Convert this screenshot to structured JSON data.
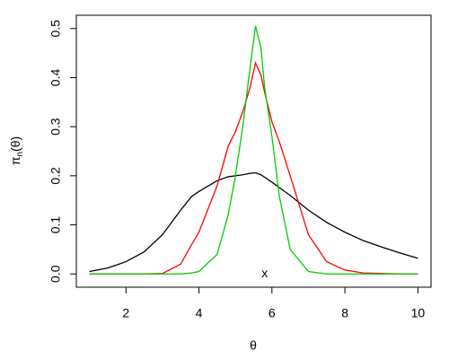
{
  "chart_data": {
    "type": "line",
    "x_label": "θ",
    "y_label": {
      "symbol": "π",
      "subscript": "n",
      "argument": "(θ)"
    },
    "x": [
      1,
      1.5,
      2,
      2.5,
      3,
      3.5,
      3.8,
      4,
      4.5,
      4.8,
      5,
      5.2,
      5.4,
      5.55,
      5.7,
      5.8,
      6,
      6.2,
      6.5,
      7,
      7.5,
      8,
      8.5,
      9,
      9.5,
      10
    ],
    "series": [
      {
        "color": "#000000",
        "values": [
          0.005,
          0.012,
          0.025,
          0.045,
          0.08,
          0.13,
          0.158,
          0.168,
          0.19,
          0.198,
          0.2,
          0.202,
          0.205,
          0.206,
          0.202,
          0.197,
          0.187,
          0.176,
          0.16,
          0.13,
          0.105,
          0.085,
          0.068,
          0.055,
          0.043,
          0.032
        ]
      },
      {
        "color": "#ff0000",
        "values": [
          0,
          0,
          0,
          0,
          0.001,
          0.02,
          0.06,
          0.085,
          0.18,
          0.26,
          0.29,
          0.33,
          0.38,
          0.43,
          0.405,
          0.37,
          0.31,
          0.27,
          0.2,
          0.08,
          0.025,
          0.008,
          0.002,
          0.001,
          0,
          0
        ]
      },
      {
        "color": "#00cd00",
        "values": [
          0,
          0,
          0,
          0,
          0,
          0,
          0.002,
          0.005,
          0.04,
          0.12,
          0.2,
          0.3,
          0.42,
          0.505,
          0.46,
          0.38,
          0.28,
          0.16,
          0.05,
          0.005,
          0,
          0,
          0,
          0,
          0,
          0
        ]
      }
    ],
    "annotations": [
      {
        "text": "x",
        "x": 5.8,
        "y": 0
      }
    ],
    "xlim": [
      0.64,
      10.36
    ],
    "xticks": [
      2,
      4,
      6,
      8,
      10
    ],
    "ylim": [
      -0.027,
      0.527
    ],
    "yticks": [
      {
        "value": 0,
        "label": "0.0"
      },
      0.1,
      0.2,
      0.3,
      0.4,
      0.5
    ],
    "grid": false
  }
}
